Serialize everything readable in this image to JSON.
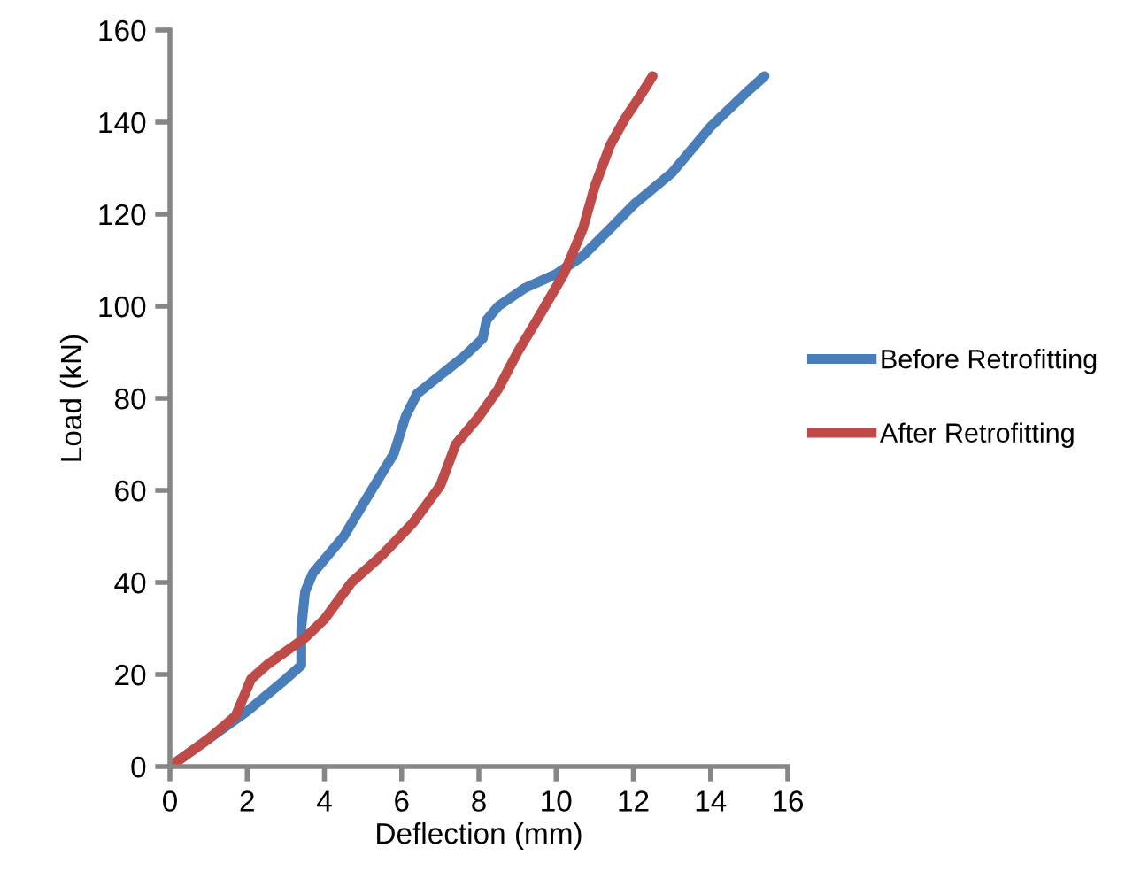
{
  "chart_data": {
    "type": "line",
    "xlabel": "Deflection (mm)",
    "ylabel": "Load (kN)",
    "xlim": [
      0,
      16
    ],
    "ylim": [
      0,
      160
    ],
    "xticks": [
      0,
      2,
      4,
      6,
      8,
      10,
      12,
      14,
      16
    ],
    "yticks": [
      0,
      20,
      40,
      60,
      80,
      100,
      120,
      140,
      160
    ],
    "grid": false,
    "legend": "right",
    "marker": "none",
    "line_style": "solid",
    "series": [
      {
        "name": "Before Retrofitting",
        "color": "#4a7ebb",
        "x": [
          0,
          1,
          2,
          3,
          3.4,
          3.4,
          3.5,
          3.7,
          4.5,
          5,
          5.8,
          6.1,
          6.4,
          7,
          7.6,
          8.1,
          8.2,
          8.5,
          9.2,
          10,
          10.7,
          11.3,
          12,
          13,
          13.5,
          14,
          15,
          15.4
        ],
        "values": [
          0,
          6,
          12,
          19,
          22,
          30,
          38,
          42,
          50,
          57,
          68,
          76,
          81,
          85,
          89,
          93,
          97,
          100,
          104,
          107,
          111,
          116,
          122,
          129,
          134,
          139,
          147,
          150
        ]
      },
      {
        "name": "After Retrofitting",
        "color": "#be4b48",
        "x": [
          0,
          1,
          1.7,
          2.1,
          2.5,
          3.5,
          4,
          4.7,
          5.5,
          6.3,
          7,
          7.4,
          8,
          8.5,
          9,
          9.5,
          10.2,
          10.7,
          11,
          11.4,
          11.8,
          12.2,
          12.5
        ],
        "values": [
          0,
          6,
          11,
          19,
          22,
          28,
          32,
          40,
          46,
          53,
          61,
          70,
          76,
          82,
          90,
          97,
          107,
          117,
          126,
          135,
          141,
          146,
          150
        ]
      }
    ]
  }
}
